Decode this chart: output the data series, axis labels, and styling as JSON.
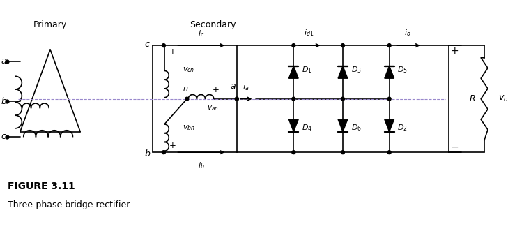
{
  "title": "FIGURE 3.11",
  "subtitle": "Three-phase bridge rectifier.",
  "label_primary": "Primary",
  "label_secondary": "Secondary",
  "bg_color": "#ffffff",
  "line_color": "#000000",
  "highlight_line_color": "#9988cc",
  "font_size_label": 9,
  "font_size_small": 7.5,
  "fig_width": 7.29,
  "fig_height": 3.51
}
